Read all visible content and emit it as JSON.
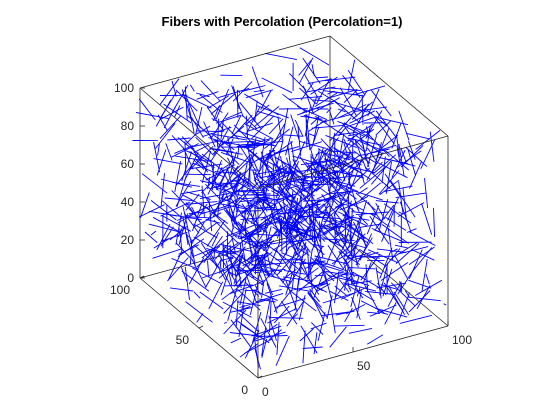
{
  "chart_data": {
    "type": "line",
    "subtype": "3d-fiber-network",
    "title": "Fibers with Percolation (Percolation=1)",
    "xlabel": "",
    "ylabel": "",
    "zlabel": "",
    "xlim": [
      0,
      100
    ],
    "ylim": [
      0,
      100
    ],
    "zlim": [
      0,
      100
    ],
    "xticks": [
      "0",
      "50",
      "100"
    ],
    "yticks": [
      "0",
      "50",
      "100"
    ],
    "zticks": [
      "0",
      "20",
      "40",
      "60",
      "80",
      "100"
    ],
    "grid": false,
    "box": true,
    "legend": "none",
    "view": "3d-default",
    "series_color": "#0000ff",
    "fiber_count": 1200,
    "fiber_length": 15,
    "domain": {
      "x": [
        0,
        100
      ],
      "y": [
        0,
        100
      ],
      "z": [
        0,
        100
      ]
    }
  }
}
